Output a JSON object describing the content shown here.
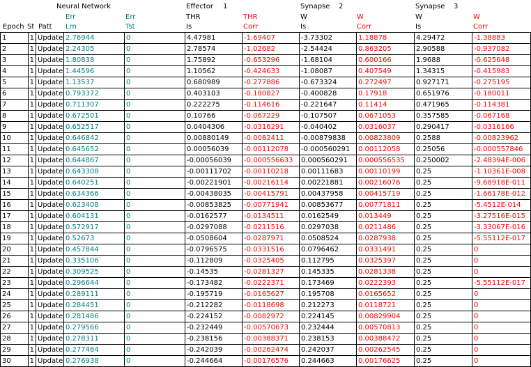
{
  "headers": {
    "nn": "Neural Network",
    "effector": "Effector",
    "effector_num": "1",
    "synapse_a": "Synapse",
    "synapse_a_num": "2",
    "synapse_b": "Synapse",
    "synapse_b_num": "3",
    "epoch": "Epoch",
    "st": "St",
    "patt": "Patt",
    "err1": "Err",
    "lrn": "Lrn",
    "err2": "Err",
    "tst": "Tst",
    "thr": "THR",
    "is1": "Is",
    "thr_red": "THR",
    "corr1": "Corr",
    "w1": "W",
    "is2": "Is",
    "w1_red": "W",
    "corr2": "Corr",
    "w2": "W",
    "is3": "Is",
    "w2_red": "W",
    "corr3": "Corr"
  },
  "rows": [
    [
      "1",
      "1",
      "Update",
      "2.76944",
      "0",
      "4.47981",
      "-1.69407",
      "-3.73302",
      "1.18878",
      "4.29472",
      "-1.38883"
    ],
    [
      "2",
      "1",
      "Update",
      "2.24305",
      "0",
      "2.78574",
      "-1.02682",
      "-2.54424",
      "0.863205",
      "2.90588",
      "-0.937082"
    ],
    [
      "3",
      "1",
      "Update",
      "1.80838",
      "0",
      "1.75892",
      "-0.653296",
      "-1.68104",
      "0.600166",
      "1.9688",
      "-0.625648"
    ],
    [
      "4",
      "1",
      "Update",
      "1.44596",
      "0",
      "1.10562",
      "-0.424633",
      "-1.08087",
      "0.407549",
      "1.34315",
      "-0.415983"
    ],
    [
      "5",
      "1",
      "Update",
      "1.13537",
      "0",
      "0.680989",
      "-0.277886",
      "-0.673324",
      "0.272497",
      "0.927171",
      "-0.275195"
    ],
    [
      "6",
      "1",
      "Update",
      "0.793372",
      "0",
      "0.403103",
      "-0.180827",
      "-0.400828",
      "0.17918",
      "0.651976",
      "-0.180011"
    ],
    [
      "7",
      "1",
      "Update",
      "0.711307",
      "0",
      "0.222275",
      "-0.114616",
      "-0.221647",
      "0.11414",
      "0.471965",
      "-0.114381"
    ],
    [
      "8",
      "1",
      "Update",
      "0.672501",
      "0",
      "0.10766",
      "-0.067229",
      "-0.107507",
      "0.0671053",
      "0.357585",
      "-0.067168"
    ],
    [
      "9",
      "1",
      "Update",
      "0.652517",
      "0",
      "0.0404306",
      "-0.0316291",
      "-0.040402",
      "0.0316037",
      "0.290417",
      "-0.0316166"
    ],
    [
      "10",
      "1",
      "Update",
      "0.646842",
      "0",
      "0.00880149",
      "-0.0082411",
      "-0.00879838",
      "0.00823809",
      "0.2588",
      "-0.00823962"
    ],
    [
      "11",
      "1",
      "Update",
      "0.645652",
      "0",
      "0.00056039",
      "-0.00112078",
      "-0.000560291",
      "0.00112058",
      "0.25056",
      "-0.000557846"
    ],
    [
      "12",
      "1",
      "Update",
      "0.644867",
      "0",
      "-0.00056039",
      "-0.000556633",
      "0.000560291",
      "0.000556535",
      "0.250002",
      "-2.48394E-006"
    ],
    [
      "13",
      "1",
      "Update",
      "0.643308",
      "0",
      "-0.00111702",
      "-0.00110218",
      "0.00111683",
      "0.00110199",
      "0.25",
      "-1.10361E-008"
    ],
    [
      "14",
      "1",
      "Update",
      "0.640251",
      "0",
      "-0.00221901",
      "-0.00216114",
      "0.00221881",
      "0.00216076",
      "0.25",
      "-9.68918E-011"
    ],
    [
      "15",
      "1",
      "Update",
      "0.634366",
      "0",
      "-0.00438035",
      "-0.00415791",
      "0.00437958",
      "0.00415719",
      "0.25",
      "-1.66178E-012"
    ],
    [
      "16",
      "1",
      "Update",
      "0.623408",
      "0",
      "-0.00853825",
      "-0.00771941",
      "0.00853677",
      "0.00771811",
      "0.25",
      "-5.4512E-014"
    ],
    [
      "17",
      "1",
      "Update",
      "0.604131",
      "0",
      "-0.0162577",
      "-0.0134511",
      "0.0162549",
      "0.013449",
      "0.25",
      "-3.27516E-015"
    ],
    [
      "18",
      "1",
      "Update",
      "0.572917",
      "0",
      "-0.0297088",
      "-0.0211516",
      "0.0297038",
      "0.0211486",
      "0.25",
      "-3.33067E-016"
    ],
    [
      "19",
      "1",
      "Update",
      "0.52673",
      "0",
      "-0.0508604",
      "-0.0287971",
      "0.0508524",
      "0.0287938",
      "0.25",
      "-5.55112E-017"
    ],
    [
      "20",
      "1",
      "Update",
      "0.457844",
      "0",
      "-0.0796575",
      "-0.0331516",
      "0.0796462",
      "0.0331491",
      "0.25",
      "0"
    ],
    [
      "21",
      "1",
      "Update",
      "0.335106",
      "0",
      "-0.112809",
      "-0.0325405",
      "0.112795",
      "0.0325397",
      "0.25",
      "0"
    ],
    [
      "22",
      "1",
      "Update",
      "0.309525",
      "0",
      "-0.14535",
      "-0.0281327",
      "0.145335",
      "0.0281338",
      "0.25",
      "0"
    ],
    [
      "23",
      "1",
      "Update",
      "0.296644",
      "0",
      "-0.173482",
      "-0.0222371",
      "0.173469",
      "0.0222393",
      "0.25",
      "-5.55112E-017"
    ],
    [
      "24",
      "1",
      "Update",
      "0.289111",
      "0",
      "-0.195719",
      "-0.0165627",
      "0.195708",
      "0.0165652",
      "0.25",
      "0"
    ],
    [
      "25",
      "1",
      "Update",
      "0.284451",
      "0",
      "-0.212282",
      "-0.0118698",
      "0.212273",
      "0.0118721",
      "0.25",
      "0"
    ],
    [
      "26",
      "1",
      "Update",
      "0.281486",
      "0",
      "-0.224152",
      "-0.0082972",
      "0.224145",
      "0.00829904",
      "0.25",
      "0"
    ],
    [
      "27",
      "1",
      "Update",
      "0.279566",
      "0",
      "-0.232449",
      "-0.00570673",
      "0.232444",
      "0.00570813",
      "0.25",
      "0"
    ],
    [
      "28",
      "1",
      "Update",
      "0.278311",
      "0",
      "-0.238156",
      "-0.00388371",
      "0.238153",
      "0.00388472",
      "0.25",
      "0"
    ],
    [
      "29",
      "1",
      "Update",
      "0.277484",
      "0",
      "-0.242039",
      "-0.00262474",
      "0.242037",
      "0.00262545",
      "0.25",
      "0"
    ],
    [
      "30",
      "1",
      "Update",
      "0.276938",
      "0",
      "-0.244664",
      "-0.00176576",
      "0.244663",
      "0.00176625",
      "0.25",
      "0"
    ]
  ],
  "colors": {
    "lrn": "#008080",
    "tst": "#008080",
    "corr": "#ff0000",
    "text": "#000000",
    "background": "#ffffff"
  }
}
